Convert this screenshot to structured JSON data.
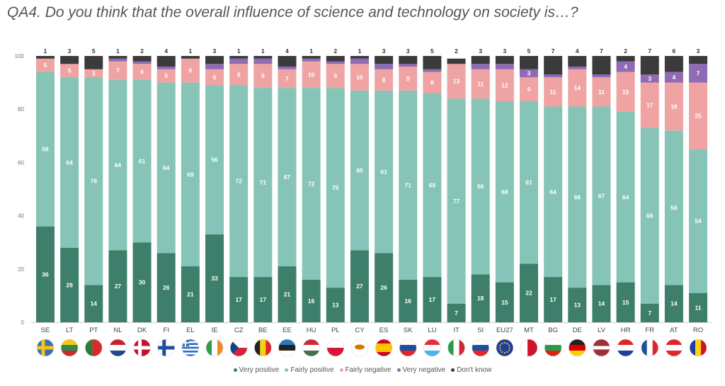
{
  "title": "QA4. Do you think that the overall influence of science and technology on society is…?",
  "chart_data": {
    "type": "bar",
    "stacked": true,
    "ylim": [
      0,
      100
    ],
    "yticks": [
      0,
      20,
      40,
      60,
      80,
      100
    ],
    "categories": [
      "SE",
      "LT",
      "PT",
      "NL",
      "DK",
      "FI",
      "EL",
      "IE",
      "CZ",
      "BE",
      "EE",
      "HU",
      "PL",
      "CY",
      "ES",
      "SK",
      "LU",
      "IT",
      "SI",
      "EU27",
      "MT",
      "BG",
      "DE",
      "LV",
      "HR",
      "FR",
      "AT",
      "RO"
    ],
    "series": [
      {
        "name": "Very positive",
        "color": "#3e7f6b",
        "values": [
          36,
          28,
          14,
          27,
          30,
          26,
          21,
          33,
          17,
          17,
          21,
          16,
          13,
          27,
          26,
          16,
          17,
          7,
          18,
          15,
          22,
          17,
          13,
          14,
          15,
          7,
          14,
          11
        ]
      },
      {
        "name": "Fairly positive",
        "color": "#85c4b6",
        "values": [
          58,
          64,
          78,
          64,
          61,
          64,
          69,
          56,
          72,
          71,
          67,
          72,
          75,
          60,
          61,
          71,
          69,
          77,
          66,
          68,
          61,
          64,
          68,
          67,
          64,
          66,
          58,
          54
        ]
      },
      {
        "name": "Fairly negative",
        "color": "#f0a3a3",
        "values": [
          5,
          5,
          3,
          7,
          6,
          5,
          9,
          6,
          8,
          9,
          7,
          10,
          9,
          10,
          8,
          9,
          8,
          13,
          11,
          12,
          9,
          11,
          14,
          11,
          15,
          17,
          18,
          25
        ]
      },
      {
        "name": "Very negative",
        "color": "#8e6bb4",
        "values": [
          0,
          0,
          0,
          1,
          1,
          1,
          0,
          2,
          2,
          2,
          1,
          1,
          1,
          2,
          2,
          1,
          1,
          0,
          2,
          2,
          3,
          1,
          1,
          1,
          4,
          3,
          4,
          7
        ]
      },
      {
        "name": "Don't know",
        "color": "#3b3b3b",
        "values": [
          1,
          3,
          5,
          1,
          2,
          4,
          1,
          3,
          1,
          1,
          4,
          1,
          2,
          1,
          3,
          3,
          5,
          2,
          3,
          3,
          5,
          7,
          4,
          7,
          2,
          7,
          6,
          3
        ]
      }
    ],
    "data_labels": [
      {
        "series": "Very positive",
        "values": [
          36,
          28,
          14,
          27,
          30,
          26,
          21,
          33,
          17,
          17,
          21,
          16,
          13,
          27,
          26,
          16,
          17,
          7,
          18,
          15,
          22,
          17,
          13,
          14,
          15,
          7,
          14,
          11
        ]
      },
      {
        "series": "Fairly positive",
        "values": [
          58,
          64,
          78,
          64,
          61,
          64,
          69,
          56,
          72,
          71,
          67,
          72,
          75,
          60,
          61,
          71,
          69,
          77,
          66,
          68,
          61,
          64,
          68,
          67,
          64,
          66,
          58,
          54
        ]
      },
      {
        "series": "Fairly negative",
        "values": [
          5,
          5,
          3,
          7,
          6,
          5,
          9,
          6,
          8,
          9,
          7,
          10,
          9,
          10,
          8,
          9,
          8,
          13,
          11,
          12,
          9,
          11,
          14,
          11,
          15,
          17,
          18,
          25
        ]
      },
      {
        "series": "Very negative",
        "values": [
          null,
          null,
          null,
          null,
          null,
          null,
          null,
          null,
          null,
          null,
          null,
          null,
          null,
          null,
          null,
          null,
          null,
          null,
          null,
          null,
          3,
          null,
          null,
          null,
          4,
          3,
          4,
          7
        ]
      }
    ],
    "top_labels": [
      1,
      3,
      5,
      1,
      2,
      4,
      1,
      3,
      1,
      1,
      4,
      1,
      2,
      1,
      3,
      3,
      5,
      2,
      3,
      3,
      5,
      7,
      4,
      7,
      2,
      7,
      6,
      3
    ],
    "legend_position": "bottom",
    "grid": false
  },
  "flags": [
    {
      "code": "SE",
      "colors": [
        "#3b6fb6",
        "#f5c518"
      ],
      "pattern": "nordic"
    },
    {
      "code": "LT",
      "colors": [
        "#f5c518",
        "#2a8c4a",
        "#c62b2b"
      ],
      "pattern": "h3"
    },
    {
      "code": "PT",
      "colors": [
        "#2a7a3a",
        "#d62b2b"
      ],
      "pattern": "v2"
    },
    {
      "code": "NL",
      "colors": [
        "#c8202f",
        "#ffffff",
        "#21468b"
      ],
      "pattern": "h3"
    },
    {
      "code": "DK",
      "colors": [
        "#c8102e",
        "#ffffff"
      ],
      "pattern": "nordic"
    },
    {
      "code": "FI",
      "colors": [
        "#ffffff",
        "#1f4e9e"
      ],
      "pattern": "nordic"
    },
    {
      "code": "EL",
      "colors": [
        "#2c6fbb",
        "#ffffff"
      ],
      "pattern": "stripes"
    },
    {
      "code": "IE",
      "colors": [
        "#2e9b4f",
        "#ffffff",
        "#f08a24"
      ],
      "pattern": "v3"
    },
    {
      "code": "CZ",
      "colors": [
        "#ffffff",
        "#d4213d",
        "#11457e"
      ],
      "pattern": "cz"
    },
    {
      "code": "BE",
      "colors": [
        "#222222",
        "#f5d20f",
        "#e1242d"
      ],
      "pattern": "v3"
    },
    {
      "code": "EE",
      "colors": [
        "#2b7ac2",
        "#222222",
        "#ffffff"
      ],
      "pattern": "h3"
    },
    {
      "code": "HU",
      "colors": [
        "#cd2a3e",
        "#ffffff",
        "#436f4d"
      ],
      "pattern": "h3"
    },
    {
      "code": "PL",
      "colors": [
        "#ffffff",
        "#dc143c"
      ],
      "pattern": "h2"
    },
    {
      "code": "CY",
      "colors": [
        "#ffffff",
        "#d57800"
      ],
      "pattern": "cy"
    },
    {
      "code": "ES",
      "colors": [
        "#c60b1e",
        "#ffc400",
        "#c60b1e"
      ],
      "pattern": "es"
    },
    {
      "code": "SK",
      "colors": [
        "#ffffff",
        "#1d4fa0",
        "#e0262b"
      ],
      "pattern": "h3"
    },
    {
      "code": "LU",
      "colors": [
        "#ed2939",
        "#ffffff",
        "#4fb3e8"
      ],
      "pattern": "h3"
    },
    {
      "code": "IT",
      "colors": [
        "#2a9a4a",
        "#ffffff",
        "#ce2b37"
      ],
      "pattern": "v3"
    },
    {
      "code": "SI",
      "colors": [
        "#ffffff",
        "#1d4fa0",
        "#e0262b"
      ],
      "pattern": "h3"
    },
    {
      "code": "EU27",
      "colors": [
        "#1f3f9a",
        "#f5c518"
      ],
      "pattern": "eu"
    },
    {
      "code": "MT",
      "colors": [
        "#ffffff",
        "#cf142b"
      ],
      "pattern": "v2"
    },
    {
      "code": "BG",
      "colors": [
        "#ffffff",
        "#2a9a4a",
        "#d62612"
      ],
      "pattern": "h3"
    },
    {
      "code": "DE",
      "colors": [
        "#222222",
        "#dd0000",
        "#ffce00"
      ],
      "pattern": "h3"
    },
    {
      "code": "LV",
      "colors": [
        "#9e3039",
        "#ffffff",
        "#9e3039"
      ],
      "pattern": "lv"
    },
    {
      "code": "HR",
      "colors": [
        "#e0262b",
        "#ffffff",
        "#1d3f96"
      ],
      "pattern": "h3"
    },
    {
      "code": "FR",
      "colors": [
        "#1f4fa0",
        "#ffffff",
        "#e0262b"
      ],
      "pattern": "v3"
    },
    {
      "code": "AT",
      "colors": [
        "#e0262b",
        "#ffffff",
        "#e0262b"
      ],
      "pattern": "h3"
    },
    {
      "code": "RO",
      "colors": [
        "#1f3f9a",
        "#fcd116",
        "#ce1126"
      ],
      "pattern": "v3"
    }
  ]
}
